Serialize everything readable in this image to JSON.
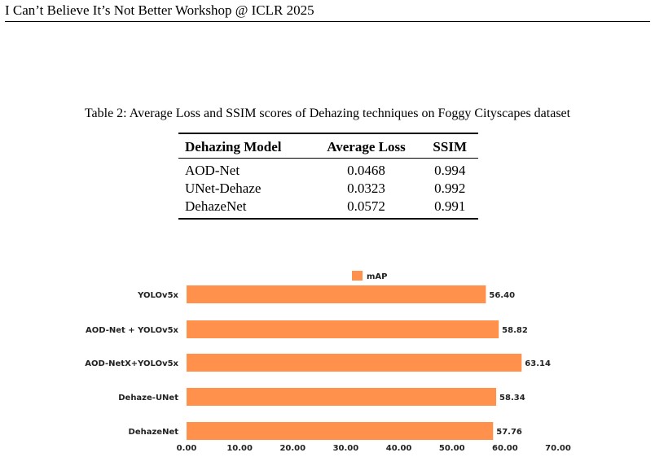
{
  "header": {
    "title": "I Can’t Believe It’s Not Better Workshop @ ICLR 2025"
  },
  "table": {
    "caption": "Table 2: Average Loss and SSIM scores of Dehazing techniques on Foggy Cityscapes dataset",
    "columns": [
      "Dehazing Model",
      "Average Loss",
      "SSIM"
    ],
    "rows": [
      [
        "AOD-Net",
        "0.0468",
        "0.994"
      ],
      [
        "UNet-Dehaze",
        "0.0323",
        "0.992"
      ],
      [
        "DehazeNet",
        "0.0572",
        "0.991"
      ]
    ]
  },
  "chart_data": {
    "type": "bar",
    "orientation": "horizontal",
    "categories": [
      "YOLOv5x",
      "AOD-Net + YOLOv5x",
      "AOD-NetX+YOLOv5x",
      "Dehaze-UNet",
      "DehazeNet"
    ],
    "series": [
      {
        "name": "mAP",
        "values": [
          56.4,
          58.82,
          63.14,
          58.34,
          57.76
        ],
        "color": "#FF914D"
      }
    ],
    "value_labels": [
      "56.40",
      "58.82",
      "63.14",
      "58.34",
      "57.76"
    ],
    "xticks": [
      "0.00",
      "10.00",
      "20.00",
      "30.00",
      "40.00",
      "50.00",
      "60.00",
      "70.00"
    ],
    "xlim": [
      0,
      70
    ],
    "legend_position": "top-center",
    "grid": false
  }
}
